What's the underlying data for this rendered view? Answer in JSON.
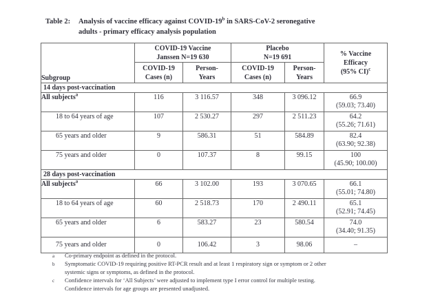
{
  "title": {
    "label": "Table 2:",
    "line1_pre": "Analysis of vaccine efficacy against COVID-19",
    "line1_sup": "b",
    "line1_post": " in SARS-CoV-2 seronegative",
    "line2": "adults - primary efficacy analysis population"
  },
  "table": {
    "subgroup_header": "Subgroup",
    "vaccine_group_header": "COVID-19 Vaccine\nJanssen N=19 630",
    "placebo_group_header": "Placebo\nN=19 691",
    "cases_header": "COVID-19\nCases (n)",
    "person_years_header": "Person-\nYears",
    "efficacy_header": "% Vaccine\nEfficacy\n(95% CI)",
    "efficacy_header_sup": "c",
    "sections": [
      {
        "label": "14 days post-vaccination",
        "rows": [
          {
            "subgroup": "All subjects",
            "sup": "a",
            "bold": true,
            "indent": false,
            "vaccine_cases": "116",
            "vaccine_py": "3 116.57",
            "placebo_cases": "348",
            "placebo_py": "3 096.12",
            "efficacy": "66.9",
            "ci": "(59.03; 73.40)"
          },
          {
            "subgroup": "18 to 64 years of age",
            "sup": "",
            "bold": false,
            "indent": true,
            "vaccine_cases": "107",
            "vaccine_py": "2 530.27",
            "placebo_cases": "297",
            "placebo_py": "2 511.23",
            "efficacy": "64.2",
            "ci": "(55.26; 71.61)"
          },
          {
            "subgroup": "65 years and older",
            "sup": "",
            "bold": false,
            "indent": true,
            "vaccine_cases": "9",
            "vaccine_py": "586.31",
            "placebo_cases": "51",
            "placebo_py": "584.89",
            "efficacy": "82.4",
            "ci": "(63.90; 92.38)"
          },
          {
            "subgroup": "75 years and older",
            "sup": "",
            "bold": false,
            "indent": true,
            "vaccine_cases": "0",
            "vaccine_py": "107.37",
            "placebo_cases": "8",
            "placebo_py": "99.15",
            "efficacy": "100",
            "ci": "(45.90; 100.00)"
          }
        ]
      },
      {
        "label": "28 days post-vaccination",
        "rows": [
          {
            "subgroup": "All subjects",
            "sup": "a",
            "bold": true,
            "indent": false,
            "vaccine_cases": "66",
            "vaccine_py": "3 102.00",
            "placebo_cases": "193",
            "placebo_py": "3 070.65",
            "efficacy": "66.1",
            "ci": "(55.01; 74.80)"
          },
          {
            "subgroup": "18 to 64 years of age",
            "sup": "",
            "bold": false,
            "indent": true,
            "vaccine_cases": "60",
            "vaccine_py": "2 518.73",
            "placebo_cases": "170",
            "placebo_py": "2 490.11",
            "efficacy": "65.1",
            "ci": "(52.91; 74.45)"
          },
          {
            "subgroup": "65 years and older",
            "sup": "",
            "bold": false,
            "indent": true,
            "vaccine_cases": "6",
            "vaccine_py": "583.27",
            "placebo_cases": "23",
            "placebo_py": "580.54",
            "efficacy": "74.0",
            "ci": "(34.40; 91.35)"
          },
          {
            "subgroup": "75 years and older",
            "sup": "",
            "bold": false,
            "indent": true,
            "vaccine_cases": "0",
            "vaccine_py": "106.42",
            "placebo_cases": "3",
            "placebo_py": "98.06",
            "efficacy": "–",
            "ci": ""
          }
        ]
      }
    ]
  },
  "footnotes": [
    {
      "marker": "a",
      "lines": [
        "Co-primary endpoint as defined in the protocol."
      ]
    },
    {
      "marker": "b",
      "lines": [
        "Symptomatic COVID-19 requiring positive RT-PCR result and at least 1 respiratory sign or symptom or 2 other",
        "systemic signs or symptoms, as defined in the protocol."
      ]
    },
    {
      "marker": "c",
      "lines": [
        "Confidence intervals for ‘All Subjects’ were adjusted to implement type I error control for multiple testing.",
        "Confidence intervals for age groups are presented unadjusted."
      ]
    }
  ],
  "colors": {
    "text": "#30303a",
    "border": "#686868",
    "background": "#ffffff"
  }
}
